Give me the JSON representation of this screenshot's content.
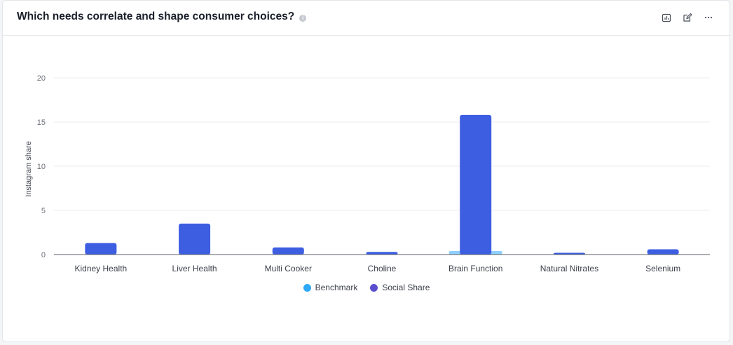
{
  "header": {
    "title": "Which needs correlate and shape consumer choices?",
    "info_icon": "info-icon",
    "tools": [
      {
        "name": "chart-export-icon"
      },
      {
        "name": "edit-icon"
      },
      {
        "name": "more-icon"
      }
    ]
  },
  "colors": {
    "benchmark": "#8fd0ff",
    "benchmark_legend": "#2fa8f5",
    "social_share": "#3d5ee1",
    "social_share_legend": "#5b4fd0",
    "grid": "#eceef1",
    "axis": "#6b6f78"
  },
  "chart_data": {
    "type": "bar",
    "title": "Which needs correlate and shape consumer choices?",
    "xlabel": "",
    "ylabel": "Instagram share",
    "ylim": [
      0,
      20
    ],
    "yticks": [
      0,
      5,
      10,
      15,
      20
    ],
    "grid": true,
    "legend_position": "bottom",
    "categories": [
      "Kidney Health",
      "Liver Health",
      "Multi Cooker",
      "Choline",
      "Brain Function",
      "Natural Nitrates",
      "Selenium"
    ],
    "series": [
      {
        "name": "Benchmark",
        "values": [
          0,
          0,
          0,
          0,
          0.4,
          0,
          0
        ]
      },
      {
        "name": "Social Share",
        "values": [
          1.3,
          3.5,
          0.8,
          0.3,
          15.8,
          0.2,
          0.6
        ]
      }
    ]
  }
}
